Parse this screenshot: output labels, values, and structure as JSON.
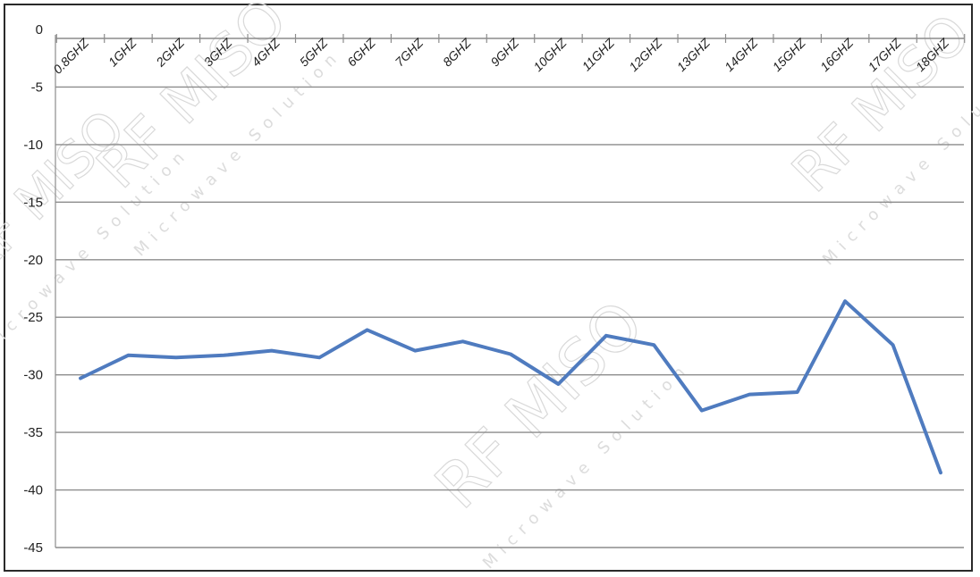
{
  "chart_data": {
    "type": "line",
    "title": "",
    "xlabel": "",
    "ylabel": "",
    "categories": [
      "0.8GHZ",
      "1GHZ",
      "2GHZ",
      "3GHZ",
      "4GHZ",
      "5GHZ",
      "6GHZ",
      "7GHZ",
      "8GHZ",
      "9GHZ",
      "10GHZ",
      "11GHZ",
      "12GHZ",
      "13GHZ",
      "14GHZ",
      "15GHZ",
      "16GHZ",
      "17GHZ",
      "18GHZ"
    ],
    "series": [
      {
        "values": [
          -30.3,
          -28.3,
          -28.5,
          -28.3,
          -27.9,
          -28.5,
          -26.1,
          -27.9,
          -27.1,
          -28.2,
          -30.8,
          -26.6,
          -27.4,
          -33.1,
          -31.7,
          -31.5,
          -23.6,
          -27.4,
          -38.5
        ],
        "color": "#4f7bbf"
      }
    ],
    "ylim": [
      -45,
      0
    ],
    "yticks": [
      0,
      -5,
      -10,
      -15,
      -20,
      -25,
      -30,
      -35,
      -40,
      -45
    ],
    "ytick_labels": [
      "0",
      "-5",
      "-10",
      "-15",
      "-20",
      "-25",
      "-30",
      "-35",
      "-40",
      "-45"
    ],
    "grid": true,
    "x_axis_position": "top",
    "legend": "none"
  },
  "watermark": {
    "text": "RF MISO",
    "subtext": "Microwave Solution"
  }
}
